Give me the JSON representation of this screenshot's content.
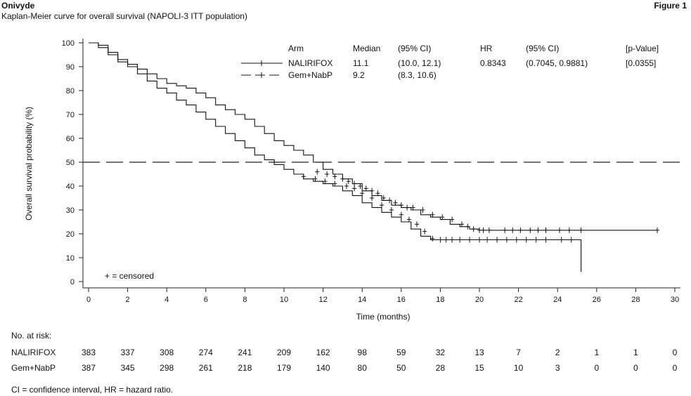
{
  "header": {
    "brand": "Onivyde",
    "subtitle": "Kaplan-Meier curve for overall survival (NAPOLI-3 ITT population)",
    "figure_label": "Figure 1"
  },
  "chart_data": {
    "type": "line",
    "title": "",
    "xlabel": "Time (months)",
    "ylabel": "Overall survival probability (%)",
    "xlim": [
      0,
      30
    ],
    "ylim": [
      0,
      100
    ],
    "xticks": [
      "0",
      "2",
      "4",
      "6",
      "8",
      "10",
      "12",
      "14",
      "16",
      "18",
      "20",
      "22",
      "24",
      "26",
      "28",
      "30"
    ],
    "yticks": [
      "0",
      "10",
      "20",
      "30",
      "40",
      "50",
      "60",
      "70",
      "80",
      "90",
      "100"
    ],
    "reference_line_y": 50,
    "censored_note": "+ = censored",
    "legend": {
      "headers": [
        "Arm",
        "Median",
        "(95% CI)",
        "HR",
        "(95% CI)",
        "[p-Value]"
      ],
      "rows": [
        {
          "arm": "NALIRIFOX",
          "median": "11.1",
          "ci": "(10.0, 12.1)",
          "hr": "0.8343",
          "hr_ci": "(0.7045, 0.9881)",
          "p": "[0.0355]"
        },
        {
          "arm": "Gem+NabP",
          "median": "9.2",
          "ci": "(8.3, 10.6)",
          "hr": "",
          "hr_ci": "",
          "p": ""
        }
      ]
    },
    "series": [
      {
        "name": "NALIRIFOX",
        "style": "solid",
        "x": [
          0,
          0.5,
          1,
          1.5,
          2,
          2.5,
          3,
          3.5,
          4,
          4.5,
          5,
          5.5,
          6,
          6.5,
          7,
          7.5,
          8,
          8.5,
          9,
          9.5,
          10,
          10.5,
          11,
          11.5,
          12,
          12.5,
          13,
          13.5,
          14,
          14.5,
          15,
          15.5,
          16,
          16.5,
          17,
          17.5,
          18,
          18.5,
          19,
          19.5,
          20,
          21,
          22,
          23,
          24,
          25,
          26,
          27,
          28,
          29.1
        ],
        "y": [
          100,
          99,
          96,
          93,
          91,
          89,
          87,
          85,
          83,
          82,
          81,
          79,
          77,
          74,
          72,
          70,
          68,
          65,
          62,
          59,
          57,
          55,
          53,
          50,
          47,
          45,
          43,
          41,
          38,
          36,
          34,
          32,
          31,
          30,
          28,
          27,
          26,
          24,
          23,
          22,
          21.5,
          21.5,
          21.5,
          21.5,
          21.5,
          21.5,
          21.5,
          21.5,
          21.5,
          21.5
        ],
        "censored_x": [
          11.7,
          12.2,
          12.6,
          13,
          13.3,
          13.6,
          13.9,
          14.2,
          14.5,
          14.8,
          15.1,
          15.4,
          15.7,
          16,
          16.3,
          16.6,
          17.1,
          17.6,
          18.1,
          18.6,
          19.1,
          19.4,
          19.7,
          20,
          20.2,
          20.5,
          21.3,
          21.7,
          22.1,
          22.6,
          23,
          23.4,
          24.1,
          24.6,
          25.2,
          29.1
        ],
        "censored_y": [
          46,
          45,
          44,
          43,
          42,
          41,
          40,
          39,
          38,
          37,
          35,
          34,
          33,
          32,
          31,
          31,
          30,
          28,
          27,
          26,
          24,
          23,
          22,
          21.5,
          21.5,
          21.5,
          21.5,
          21.5,
          21.5,
          21.5,
          21.5,
          21.5,
          21.5,
          21.5,
          21.5,
          21.5
        ]
      },
      {
        "name": "Gem+NabP",
        "style": "dashed",
        "x": [
          0,
          0.5,
          1,
          1.5,
          2,
          2.5,
          3,
          3.5,
          4,
          4.5,
          5,
          5.5,
          6,
          6.5,
          7,
          7.5,
          8,
          8.5,
          9,
          9.5,
          10,
          10.5,
          11,
          11.5,
          12,
          12.5,
          13,
          13.5,
          14,
          14.5,
          15,
          15.5,
          16,
          16.5,
          17,
          17.5,
          18,
          18.5,
          19,
          20,
          21,
          22,
          23,
          24,
          25.2,
          25.2
        ],
        "y": [
          100,
          98,
          95,
          92,
          90,
          87,
          84,
          81,
          79,
          76,
          74,
          71,
          68,
          65,
          62,
          59,
          56,
          53,
          51,
          49,
          47,
          45,
          43,
          42,
          41,
          40,
          38,
          36,
          33,
          31,
          29,
          27,
          25,
          22,
          19,
          17.5,
          17.5,
          17.5,
          17.5,
          17.5,
          17.5,
          17.5,
          17.5,
          17.5,
          17.5,
          4
        ],
        "censored_x": [
          11,
          11.6,
          12.1,
          12.6,
          13.2,
          13.6,
          14,
          14.5,
          15,
          15.5,
          16,
          16.4,
          16.8,
          17.2,
          17.6,
          18,
          18.3,
          18.6,
          19,
          19.5,
          20,
          20.4,
          20.9,
          21.4,
          21.9,
          22.4,
          22.9,
          23.4,
          24.2,
          24.7
        ],
        "censored_y": [
          44,
          43,
          42,
          41,
          40,
          39,
          37,
          35,
          32,
          30,
          28,
          26,
          24,
          21,
          18,
          17.5,
          17.5,
          17.5,
          17.5,
          17.5,
          17.5,
          17.5,
          17.5,
          17.5,
          17.5,
          17.5,
          17.5,
          17.5,
          17.5,
          17.5
        ]
      }
    ],
    "at_risk": {
      "title": "No. at risk:",
      "rows": [
        {
          "label": "NALIRIFOX",
          "values": [
            "383",
            "337",
            "308",
            "274",
            "241",
            "209",
            "162",
            "98",
            "59",
            "32",
            "13",
            "7",
            "2",
            "1",
            "1",
            "0"
          ]
        },
        {
          "label": "Gem+NabP",
          "values": [
            "387",
            "345",
            "298",
            "261",
            "218",
            "179",
            "140",
            "80",
            "50",
            "28",
            "15",
            "10",
            "3",
            "0",
            "0",
            "0"
          ]
        }
      ]
    }
  },
  "footnote": "CI = confidence interval, HR = hazard ratio."
}
